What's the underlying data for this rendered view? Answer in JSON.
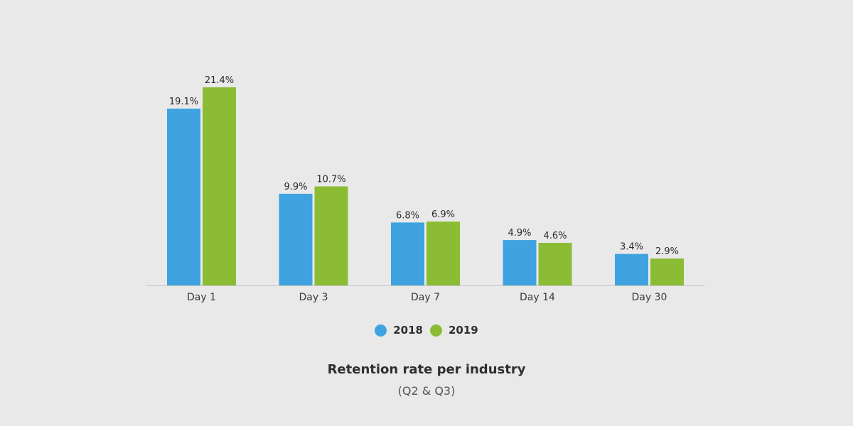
{
  "chart_data": {
    "type": "bar",
    "title": "Retention rate per industry",
    "subtitle": "(Q2 & Q3)",
    "categories": [
      "Day 1",
      "Day 3",
      "Day 7",
      "Day 14",
      "Day 30"
    ],
    "series": [
      {
        "name": "2018",
        "color": "#3ea3e0",
        "values": [
          19.1,
          9.9,
          6.8,
          4.9,
          3.4
        ],
        "labels": [
          "19.1%",
          "9.9%",
          "6.8%",
          "4.9%",
          "3.4%"
        ]
      },
      {
        "name": "2019",
        "color": "#8cbb34",
        "values": [
          21.4,
          10.7,
          6.9,
          4.6,
          2.9
        ],
        "labels": [
          "21.4%",
          "10.7%",
          "6.9%",
          "4.6%",
          "2.9%"
        ]
      }
    ],
    "ylim": [
      0,
      21.4
    ],
    "grid": false,
    "legend_position": "bottom"
  }
}
